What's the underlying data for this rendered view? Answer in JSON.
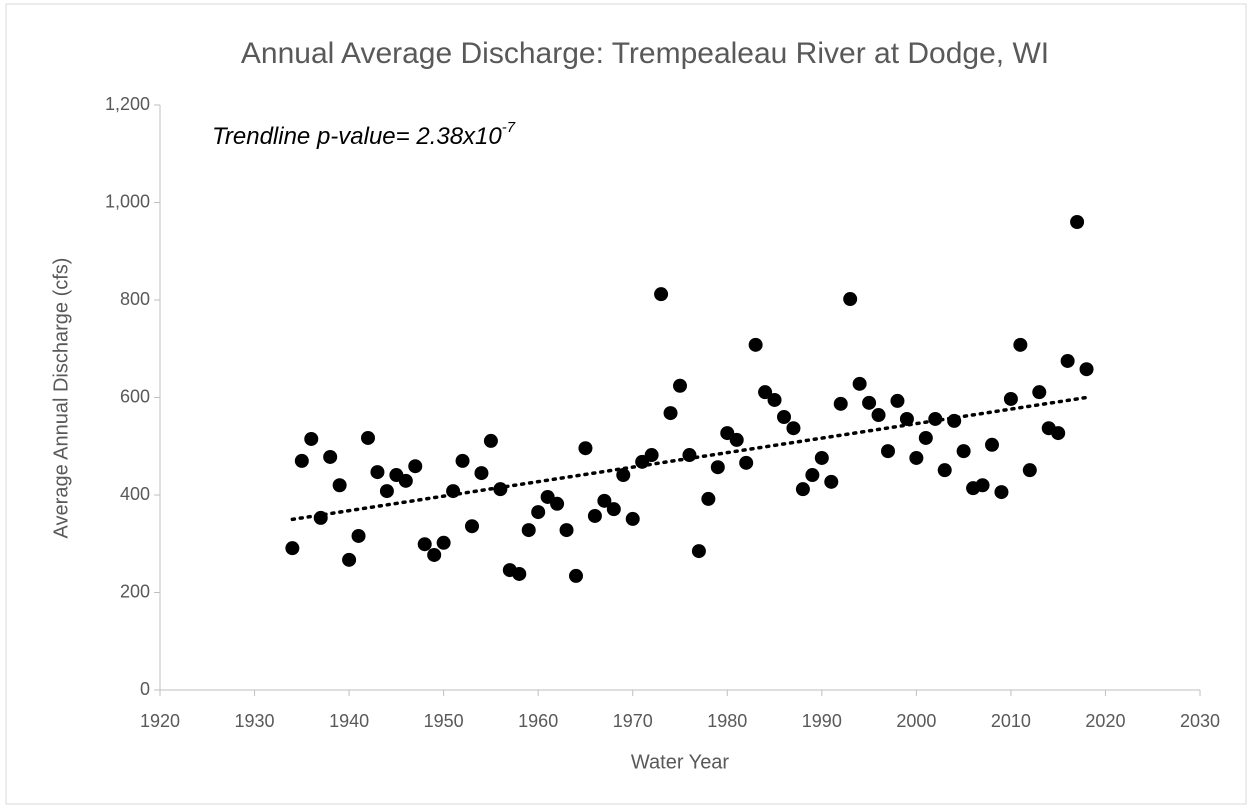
{
  "chart_data": {
    "type": "scatter",
    "title": "Annual Average Discharge: Trempealeau River at Dodge, WI",
    "x_label": "Water Year",
    "y_label": "Average Annual Discharge (cfs)",
    "annotation": {
      "text": "Trendline p-value= 2.38x10",
      "superscript": "-7"
    },
    "xlim": [
      1920,
      2030
    ],
    "xticks": [
      1920,
      1930,
      1940,
      1950,
      1960,
      1970,
      1980,
      1990,
      2000,
      2010,
      2020,
      2030
    ],
    "ylim": [
      0,
      1200
    ],
    "yticks": [
      0,
      200,
      400,
      600,
      800,
      {
        "value": 1000,
        "label": "1,000"
      },
      {
        "value": 1200,
        "label": "1,200"
      }
    ],
    "color": "#000000",
    "x": [
      1934,
      1935,
      1936,
      1937,
      1938,
      1939,
      1940,
      1941,
      1942,
      1943,
      1944,
      1945,
      1946,
      1947,
      1948,
      1949,
      1950,
      1951,
      1952,
      1953,
      1954,
      1955,
      1956,
      1957,
      1958,
      1959,
      1960,
      1961,
      1962,
      1963,
      1964,
      1965,
      1966,
      1967,
      1968,
      1969,
      1970,
      1971,
      1972,
      1973,
      1974,
      1975,
      1976,
      1977,
      1978,
      1979,
      1980,
      1981,
      1982,
      1983,
      1984,
      1985,
      1986,
      1987,
      1988,
      1989,
      1990,
      1991,
      1992,
      1993,
      1994,
      1995,
      1996,
      1997,
      1998,
      1999,
      2000,
      2001,
      2002,
      2003,
      2004,
      2005,
      2006,
      2007,
      2008,
      2009,
      2010,
      2011,
      2012,
      2013,
      2014,
      2015,
      2016,
      2017,
      2018
    ],
    "values": [
      291,
      470,
      515,
      353,
      478,
      420,
      267,
      316,
      517,
      447,
      408,
      441,
      429,
      459,
      299,
      277,
      302,
      408,
      470,
      336,
      445,
      511,
      412,
      246,
      238,
      328,
      365,
      396,
      382,
      328,
      234,
      496,
      357,
      388,
      371,
      441,
      351,
      468,
      482,
      812,
      568,
      624,
      482,
      285,
      392,
      457,
      527,
      513,
      466,
      708,
      611,
      595,
      560,
      537,
      412,
      441,
      476,
      427,
      587,
      802,
      628,
      589,
      564,
      490,
      593,
      556,
      476,
      517,
      556,
      451,
      552,
      490,
      414,
      420,
      503,
      406,
      597,
      708,
      451,
      611,
      537,
      527,
      675,
      960,
      658
    ],
    "trendline": {
      "x": [
        1934,
        2018
      ],
      "values": [
        350,
        600
      ]
    }
  }
}
